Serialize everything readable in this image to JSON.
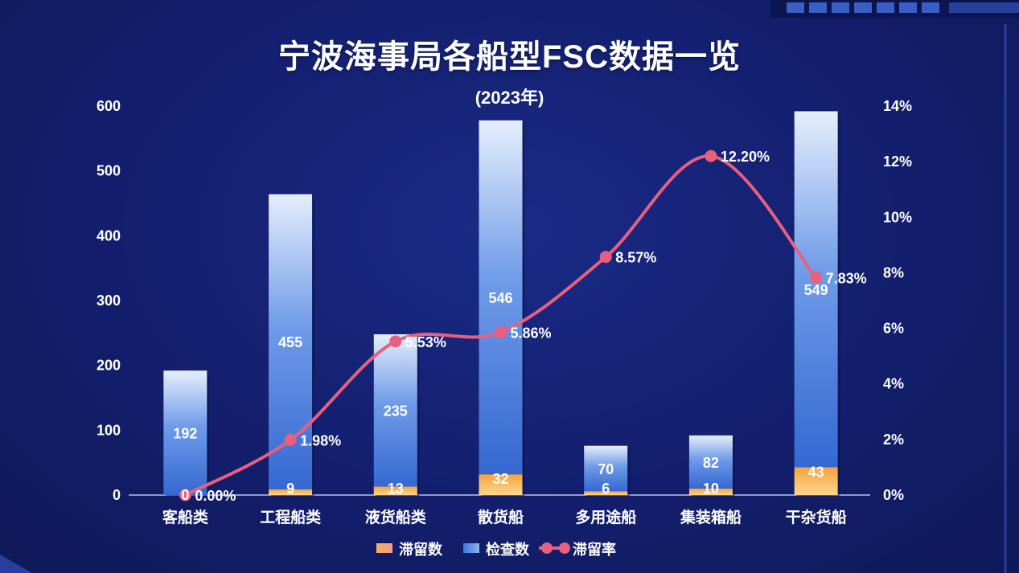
{
  "chart_data": {
    "type": "bar",
    "title": "宁波海事局各船型FSC数据一览",
    "subtitle": "(2023年)",
    "categories": [
      "客船类",
      "工程船类",
      "液货船类",
      "散货船",
      "多用途船",
      "集装箱船",
      "干杂货船"
    ],
    "series": [
      {
        "name": "滞留数",
        "kind": "bar-stacked",
        "axis": "left",
        "values": [
          0,
          9,
          13,
          32,
          6,
          10,
          43
        ],
        "labels": [
          "0",
          "9",
          "13",
          "32",
          "6",
          "10",
          "43"
        ],
        "color": "#f5b45a"
      },
      {
        "name": "检查数",
        "kind": "bar-stacked",
        "axis": "left",
        "values": [
          192,
          455,
          235,
          546,
          70,
          82,
          549
        ],
        "labels": [
          "192",
          "455",
          "235",
          "546",
          "70",
          "82",
          "549"
        ],
        "color": "#3f78db"
      },
      {
        "name": "滞留率",
        "kind": "line",
        "axis": "right",
        "values": [
          0.0,
          1.98,
          5.53,
          5.86,
          8.57,
          12.2,
          7.83
        ],
        "labels": [
          "0.00%",
          "1.98%",
          "5.53%",
          "5.86%",
          "8.57%",
          "12.20%",
          "7.83%"
        ],
        "color": "#e8607e"
      }
    ],
    "y_left": {
      "range": [
        0,
        600
      ],
      "ticks": [
        "0",
        "100",
        "200",
        "300",
        "400",
        "500",
        "600"
      ]
    },
    "y_right": {
      "range": [
        0,
        14
      ],
      "ticks": [
        "0%",
        "2%",
        "4%",
        "6%",
        "8%",
        "10%",
        "12%",
        "14%"
      ]
    },
    "legend": {
      "placement": "bottom-center",
      "items": [
        "滞留数",
        "检查数",
        "滞留率"
      ]
    },
    "grid": false
  }
}
